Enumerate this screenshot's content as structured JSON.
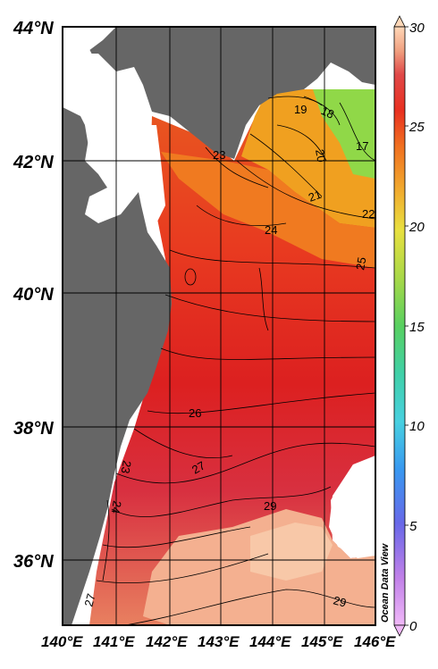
{
  "map": {
    "credit": "Ocean Data View",
    "lat_labels": [
      "44°N",
      "42°N",
      "40°N",
      "38°N",
      "36°N"
    ],
    "lon_labels": [
      "140°E",
      "141°E",
      "142°E",
      "143°E",
      "144°E",
      "145°E",
      "146°E"
    ],
    "colorbar": {
      "ticks": [
        "30",
        "25",
        "20",
        "15",
        "10",
        "5",
        "0"
      ],
      "min": 0,
      "max": 30,
      "colors": [
        "#e8a8f0",
        "#b070e0",
        "#6060e0",
        "#3090e8",
        "#40c8d8",
        "#40d0a0",
        "#60d060",
        "#a8d848",
        "#e8e040",
        "#f0b030",
        "#f07020",
        "#e83020",
        "#d82020",
        "#e05050",
        "#f0a080",
        "#ffd8b8"
      ]
    },
    "contour_labels": [
      "19",
      "18",
      "17",
      "20",
      "23",
      "21",
      "22",
      "24",
      "25",
      "26",
      "27",
      "23",
      "24",
      "29",
      "29",
      "27"
    ],
    "colors": {
      "land": "#666666",
      "ocean_no_data": "#ffffff",
      "grid": "#000000"
    }
  }
}
